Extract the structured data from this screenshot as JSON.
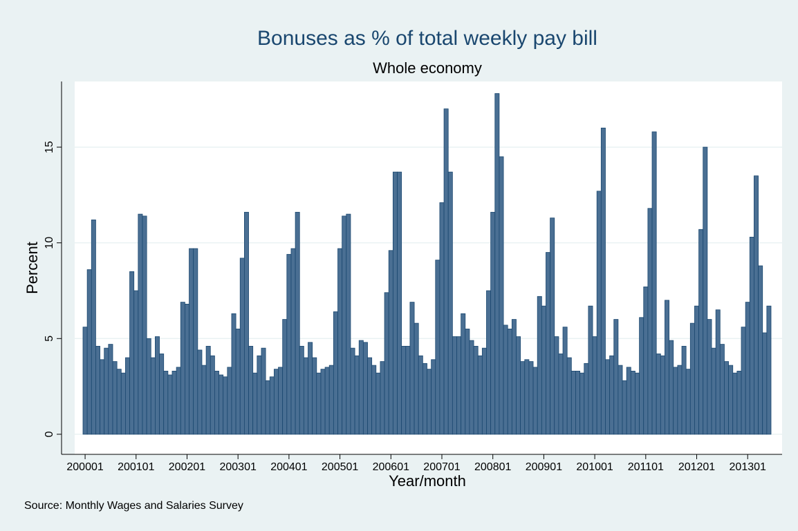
{
  "chart_data": {
    "type": "bar",
    "title": "Bonuses as % of total weekly pay bill",
    "subtitle": "Whole economy",
    "x_label": "Year/month",
    "y_label": "Percent",
    "source": "Source: Monthly Wages and Salaries Survey",
    "categories": [
      "200001",
      null,
      null,
      null,
      null,
      null,
      null,
      null,
      null,
      null,
      null,
      null,
      "200101",
      null,
      null,
      null,
      null,
      null,
      null,
      null,
      null,
      null,
      null,
      null,
      "200201",
      null,
      null,
      null,
      null,
      null,
      null,
      null,
      null,
      null,
      null,
      null,
      "200301",
      null,
      null,
      null,
      null,
      null,
      null,
      null,
      null,
      null,
      null,
      null,
      "200401",
      null,
      null,
      null,
      null,
      null,
      null,
      null,
      null,
      null,
      null,
      null,
      "200501",
      null,
      null,
      null,
      null,
      null,
      null,
      null,
      null,
      null,
      null,
      null,
      "200601",
      null,
      null,
      null,
      null,
      null,
      null,
      null,
      null,
      null,
      null,
      null,
      "200701",
      null,
      null,
      null,
      null,
      null,
      null,
      null,
      null,
      null,
      null,
      null,
      "200801",
      null,
      null,
      null,
      null,
      null,
      null,
      null,
      null,
      null,
      null,
      null,
      "200901",
      null,
      null,
      null,
      null,
      null,
      null,
      null,
      null,
      null,
      null,
      null,
      "201001",
      null,
      null,
      null,
      null,
      null,
      null,
      null,
      null,
      null,
      null,
      null,
      "201101",
      null,
      null,
      null,
      null,
      null,
      null,
      null,
      null,
      null,
      null,
      null,
      "201201",
      null,
      null,
      null,
      null,
      null,
      null,
      null,
      null,
      null,
      null,
      null,
      "201301",
      null,
      null,
      null,
      null,
      null
    ],
    "values": [
      5.6,
      8.6,
      11.2,
      4.6,
      3.9,
      4.5,
      4.7,
      3.8,
      3.4,
      3.2,
      4.0,
      8.5,
      7.5,
      11.5,
      11.4,
      5.0,
      4.0,
      5.1,
      4.2,
      3.3,
      3.1,
      3.3,
      3.5,
      6.9,
      6.8,
      9.7,
      9.7,
      4.4,
      3.6,
      4.6,
      4.1,
      3.3,
      3.1,
      3.0,
      3.5,
      6.3,
      5.5,
      9.2,
      11.6,
      4.6,
      3.2,
      4.1,
      4.5,
      2.8,
      3.0,
      3.4,
      3.5,
      6.0,
      9.4,
      9.7,
      11.6,
      4.6,
      4.0,
      4.8,
      4.0,
      3.2,
      3.4,
      3.5,
      3.6,
      6.4,
      9.7,
      11.4,
      11.5,
      4.5,
      4.1,
      4.9,
      4.8,
      4.0,
      3.6,
      3.2,
      3.8,
      7.4,
      9.6,
      13.7,
      13.7,
      4.6,
      4.6,
      6.9,
      5.8,
      4.1,
      3.7,
      3.4,
      3.9,
      9.1,
      12.1,
      17.0,
      13.7,
      5.1,
      5.1,
      6.3,
      5.5,
      4.9,
      4.6,
      4.1,
      4.5,
      7.5,
      11.6,
      17.8,
      14.5,
      5.7,
      5.5,
      6.0,
      5.1,
      3.8,
      3.9,
      3.8,
      3.5,
      7.2,
      6.7,
      9.5,
      11.3,
      5.1,
      4.2,
      5.6,
      4.0,
      3.3,
      3.3,
      3.2,
      3.7,
      6.7,
      5.1,
      12.7,
      16.0,
      3.9,
      4.1,
      6.0,
      3.6,
      2.8,
      3.5,
      3.3,
      3.2,
      6.1,
      7.7,
      11.8,
      15.8,
      4.2,
      4.1,
      7.0,
      4.9,
      3.5,
      3.6,
      4.6,
      3.4,
      5.8,
      6.7,
      10.7,
      15.0,
      6.0,
      4.5,
      6.5,
      4.7,
      3.8,
      3.6,
      3.2,
      3.3,
      5.6,
      6.9,
      10.3,
      13.5,
      8.8,
      5.3,
      6.7
    ],
    "color": "#4a6f93",
    "ylim": [
      -1.05,
      18.43
    ],
    "yticks": [
      0,
      5,
      10,
      15
    ],
    "grid": true
  }
}
